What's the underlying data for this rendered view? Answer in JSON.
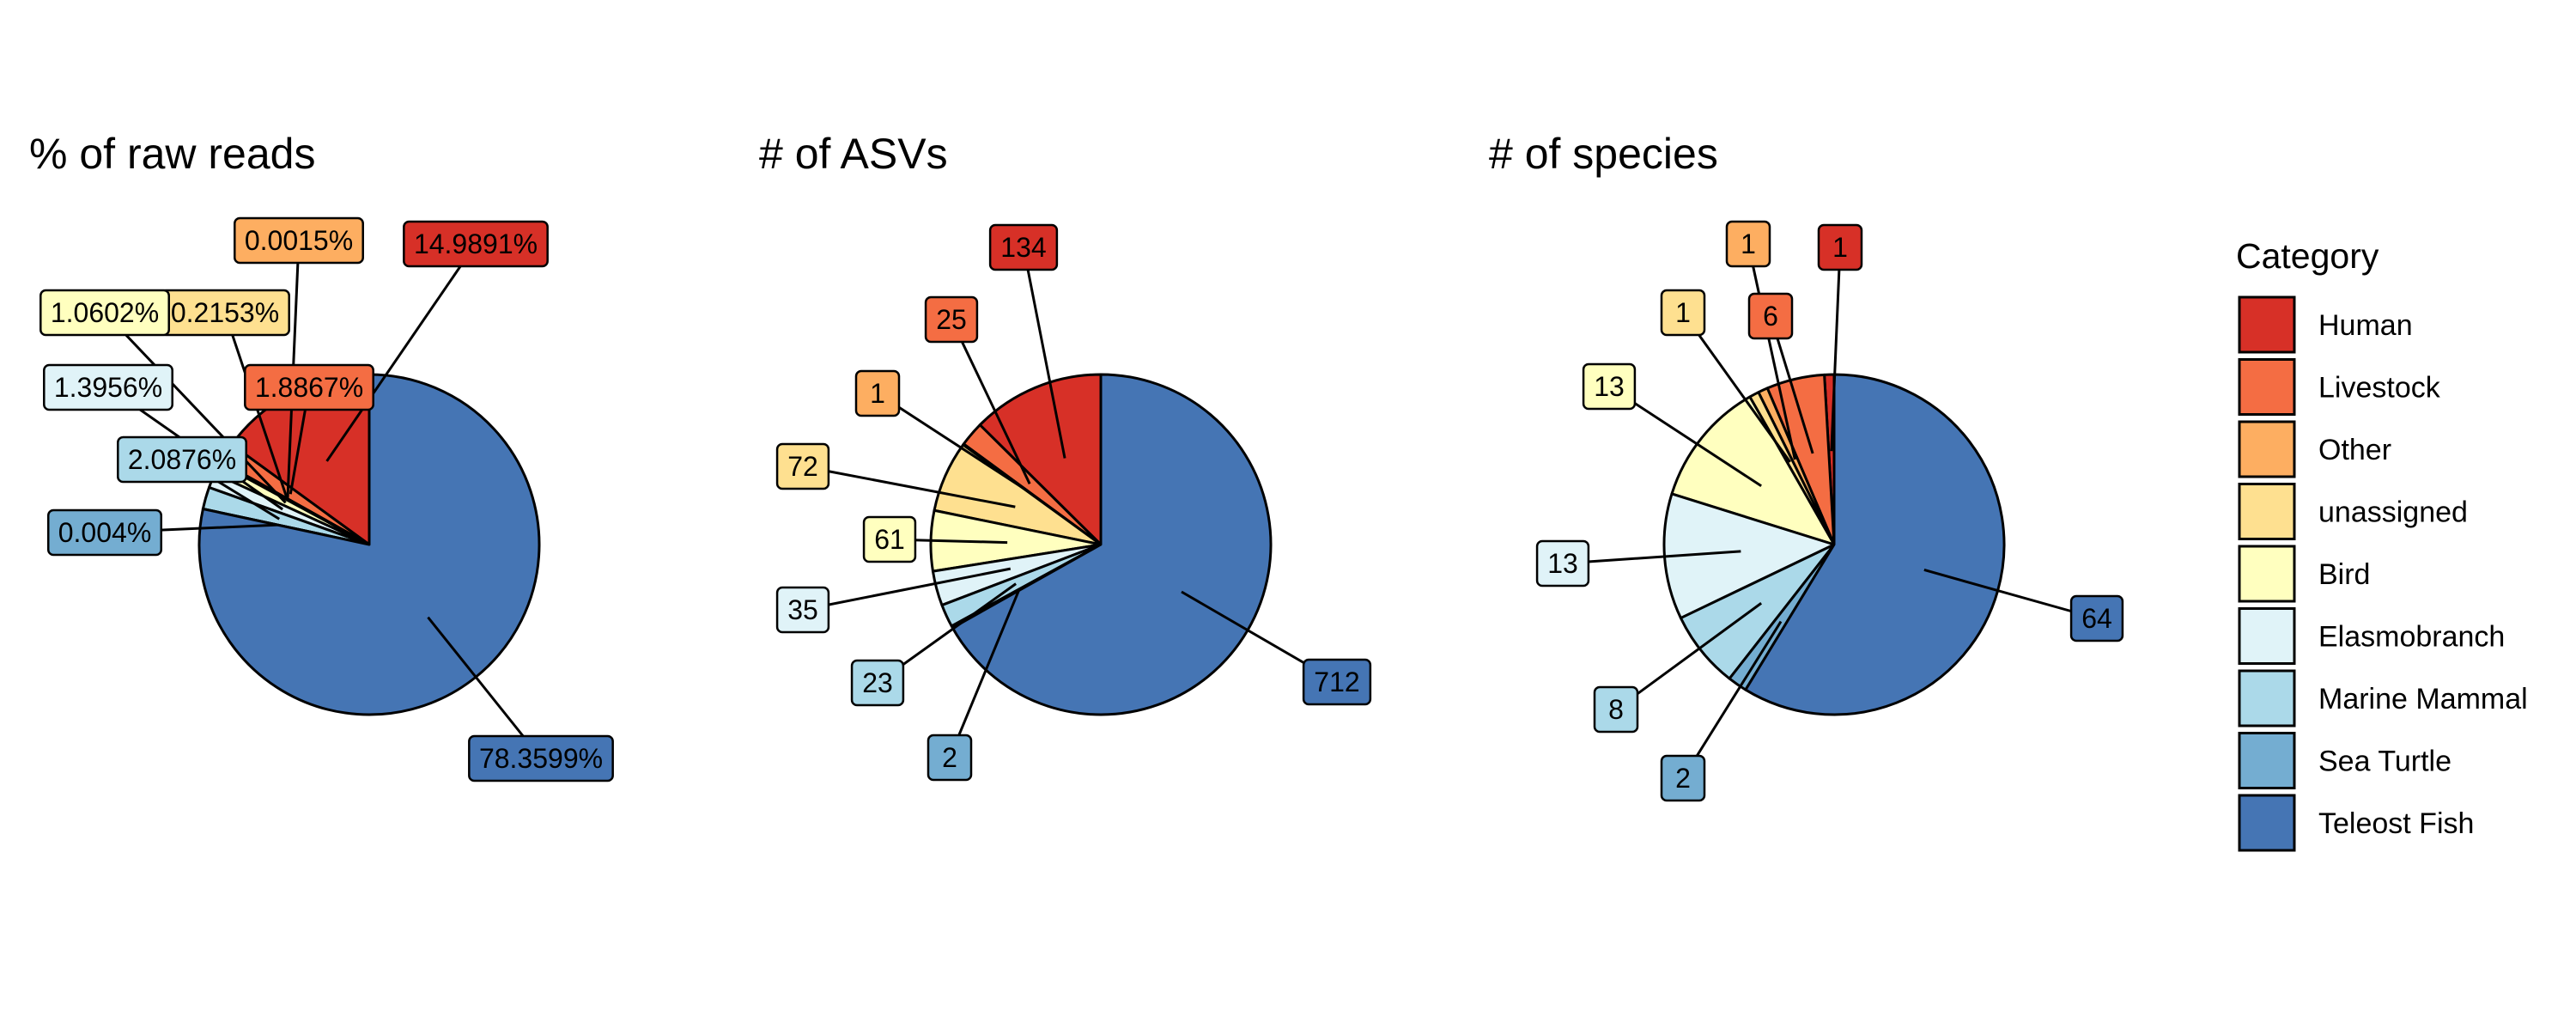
{
  "categories": [
    "Human",
    "Livestock",
    "Other",
    "unassigned",
    "Bird",
    "Elasmobranch",
    "Marine Mammal",
    "Sea Turtle",
    "Teleost Fish"
  ],
  "colors": {
    "Human": "#d73027",
    "Livestock": "#f46d43",
    "Other": "#fdae61",
    "unassigned": "#fee090",
    "Bird": "#ffffbf",
    "Elasmobranch": "#e0f3f8",
    "Marine Mammal": "#abd9e9",
    "Sea Turtle": "#74add1",
    "Teleost Fish": "#4575b4"
  },
  "legend": {
    "title": "Category",
    "items": [
      "Human",
      "Livestock",
      "Other",
      "unassigned",
      "Bird",
      "Elasmobranch",
      "Marine Mammal",
      "Sea Turtle",
      "Teleost Fish"
    ]
  },
  "chart_data": [
    {
      "type": "pie",
      "title": "% of raw reads",
      "slices": [
        {
          "category": "Human",
          "value": 14.9891,
          "label": "14.9891%"
        },
        {
          "category": "Livestock",
          "value": 1.8867,
          "label": "1.8867%"
        },
        {
          "category": "Other",
          "value": 0.0015,
          "label": "0.0015%"
        },
        {
          "category": "unassigned",
          "value": 0.2153,
          "label": "0.2153%"
        },
        {
          "category": "Bird",
          "value": 1.0602,
          "label": "1.0602%"
        },
        {
          "category": "Elasmobranch",
          "value": 1.3956,
          "label": "1.3956%"
        },
        {
          "category": "Marine Mammal",
          "value": 2.0876,
          "label": "2.0876%"
        },
        {
          "category": "Sea Turtle",
          "value": 0.004,
          "label": "0.004%"
        },
        {
          "category": "Teleost Fish",
          "value": 78.3599,
          "label": "78.3599%"
        }
      ]
    },
    {
      "type": "pie",
      "title": "# of ASVs",
      "slices": [
        {
          "category": "Human",
          "value": 134,
          "label": "134"
        },
        {
          "category": "Livestock",
          "value": 25,
          "label": "25"
        },
        {
          "category": "Other",
          "value": 1,
          "label": "1"
        },
        {
          "category": "unassigned",
          "value": 72,
          "label": "72"
        },
        {
          "category": "Bird",
          "value": 61,
          "label": "61"
        },
        {
          "category": "Elasmobranch",
          "value": 35,
          "label": "35"
        },
        {
          "category": "Marine Mammal",
          "value": 23,
          "label": "23"
        },
        {
          "category": "Sea Turtle",
          "value": 2,
          "label": "2"
        },
        {
          "category": "Teleost Fish",
          "value": 712,
          "label": "712"
        }
      ]
    },
    {
      "type": "pie",
      "title": "# of species",
      "slices": [
        {
          "category": "Human",
          "value": 1,
          "label": "1"
        },
        {
          "category": "Livestock",
          "value": 6,
          "label": "6"
        },
        {
          "category": "Other",
          "value": 1,
          "label": "1"
        },
        {
          "category": "unassigned",
          "value": 1,
          "label": "1"
        },
        {
          "category": "Bird",
          "value": 13,
          "label": "13"
        },
        {
          "category": "Elasmobranch",
          "value": 13,
          "label": "13"
        },
        {
          "category": "Marine Mammal",
          "value": 8,
          "label": "8"
        },
        {
          "category": "Sea Turtle",
          "value": 2,
          "label": "2"
        },
        {
          "category": "Teleost Fish",
          "value": 64,
          "label": "64"
        }
      ]
    }
  ]
}
